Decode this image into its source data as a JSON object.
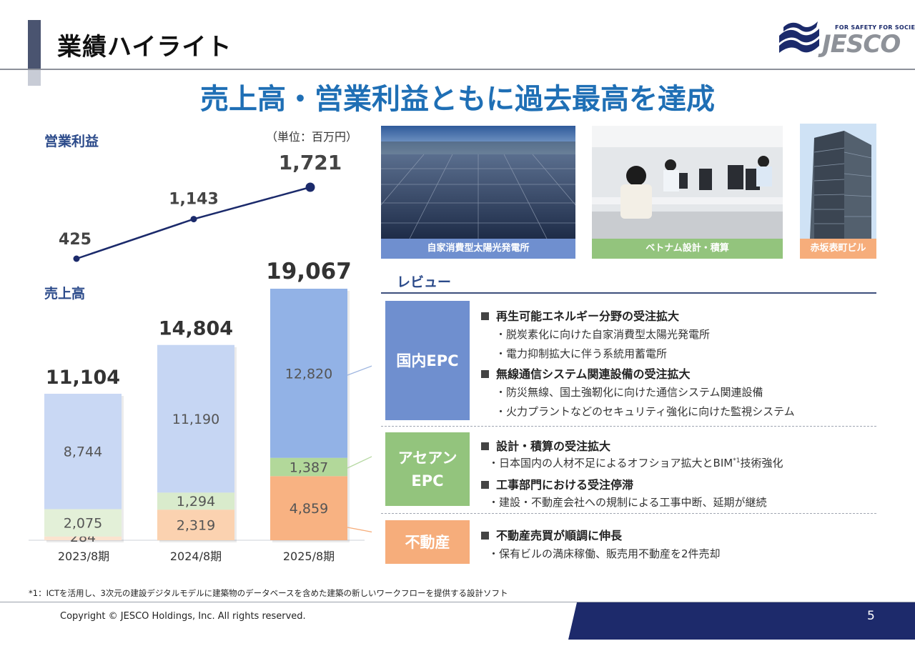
{
  "header": {
    "title": "業績ハイライト",
    "logo_tagline": "FOR SAFETY FOR SOCIETY",
    "logo_word": "JESCO"
  },
  "headline": "売上高・営業利益ともに過去最高を達成",
  "unit_note": "（単位：百万円）",
  "chart_data": [
    {
      "type": "line",
      "title": "営業利益",
      "categories": [
        "2023/8期",
        "2024/8期",
        "2025/8期"
      ],
      "values": [
        425,
        1143,
        1721
      ],
      "labels": [
        "425",
        "1,143",
        "1,721"
      ],
      "color": "#1b2a6b"
    },
    {
      "type": "bar",
      "stacked": true,
      "title": "売上高",
      "categories": [
        "2023/8期",
        "2024/8期",
        "2025/8期"
      ],
      "totals": [
        11104,
        14804,
        19067
      ],
      "total_labels": [
        "11,104",
        "14,804",
        "19,067"
      ],
      "series": [
        {
          "key": "real_estate",
          "values": [
            284,
            2319,
            4859
          ],
          "labels": [
            "284",
            "2,319",
            "4,859"
          ],
          "colors": [
            "#fbe3cf",
            "#fbd2b0",
            "#f8b282"
          ]
        },
        {
          "key": "asean_epc",
          "values": [
            2075,
            1294,
            1387
          ],
          "labels": [
            "2,075",
            "1,294",
            "1,387"
          ],
          "colors": [
            "#e3f0d8",
            "#d9ebcc",
            "#b2d89a"
          ]
        },
        {
          "key": "domestic_epc",
          "values": [
            8744,
            11190,
            12820
          ],
          "labels": [
            "8,744",
            "11,190",
            "12,820"
          ],
          "colors": [
            "#c9d8f4",
            "#c6d6f3",
            "#92b2e6"
          ]
        }
      ]
    }
  ],
  "photos": [
    {
      "caption": "自家消費型太陽光発電所",
      "caption_color": "#6f8fcf"
    },
    {
      "caption": "ベトナム設計・積算",
      "caption_color": "#93c47d"
    },
    {
      "caption": "赤坂表町ビル",
      "caption_color": "#f6ad7b"
    }
  ],
  "review": {
    "label": "レビュー",
    "segments": [
      {
        "name": "国内EPC",
        "color": "#6f8fcf",
        "items": [
          {
            "heading": "再生可能エネルギー分野の受注拡大",
            "subs": [
              "・脱炭素化に向けた自家消費型太陽光発電所",
              "・電力抑制拡大に伴う系統用蓄電所"
            ]
          },
          {
            "heading": "無線通信システム関連設備の受注拡大",
            "subs": [
              "・防災無線、国土強靭化に向けた通信システム関連設備",
              "・火力プラントなどのセキュリティ強化に向けた監視システム"
            ]
          }
        ]
      },
      {
        "name_line1": "アセアン",
        "name_line2": "EPC",
        "color": "#93c47d",
        "items": [
          {
            "heading": "設計・積算の受注拡大",
            "subs": [
              "・日本国内の人材不足によるオフショア拡大とBIM",
              "*1",
              "技術強化"
            ]
          },
          {
            "heading": "工事部門における受注停滞",
            "subs": [
              "・建設・不動産会社への規制による工事中断、延期が継続"
            ]
          }
        ]
      },
      {
        "name": "不動産",
        "color": "#f6ad7b",
        "items": [
          {
            "heading": "不動産売買が順調に伸長",
            "subs": [
              "・保有ビルの満床稼働、販売用不動産を2件売却"
            ]
          }
        ]
      }
    ]
  },
  "footnote": "*1：ICTを活用し、3次元の建設デジタルモデルに建築物のデータベースを含めた建築の新しいワークフローを提供する設計ソフト",
  "footer": {
    "copyright": "Copyright © JESCO Holdings, Inc.  All rights reserved.",
    "page_number": "5"
  }
}
